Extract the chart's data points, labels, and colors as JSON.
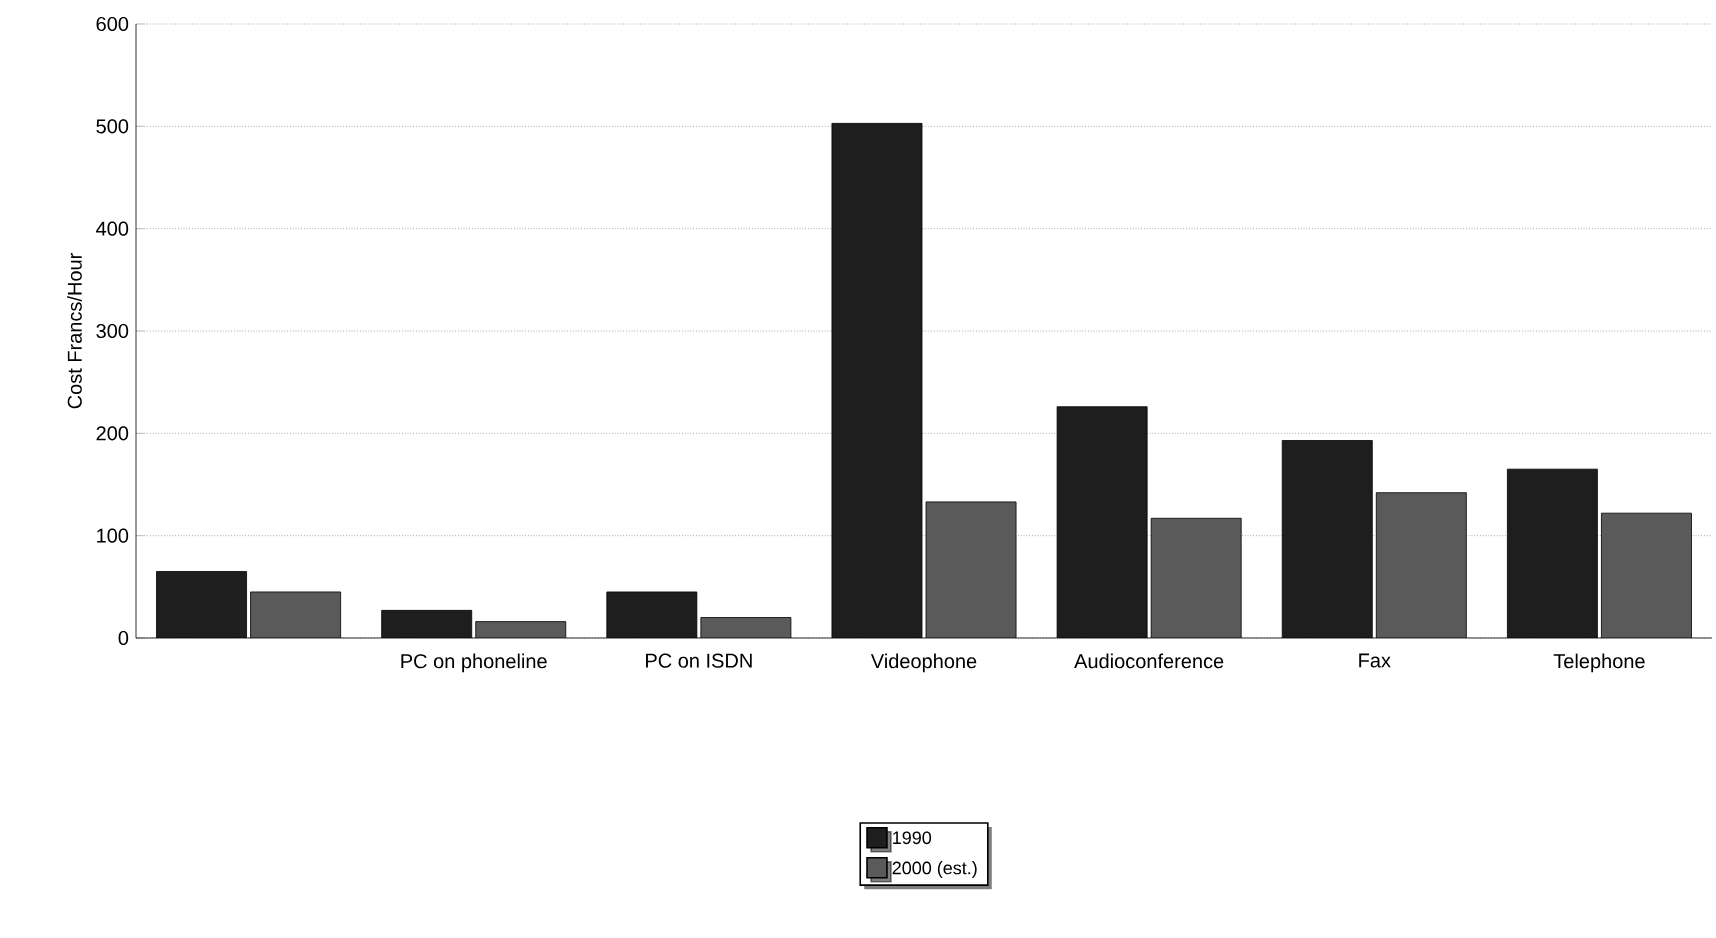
{
  "chart_data": {
    "type": "bar",
    "ylabel": "Cost Francs/Hour",
    "categories": [
      null,
      "PC on phoneline",
      "PC on ISDN",
      "Videophone",
      "Audioconference",
      "Fax",
      "Telephone"
    ],
    "series": [
      {
        "name": "1990",
        "color": "#1e1e1e",
        "values": [
          65,
          27,
          45,
          503,
          226,
          193,
          165
        ]
      },
      {
        "name": "2000 (est.)",
        "color": "#5a5a5a",
        "values": [
          45,
          16,
          20,
          133,
          117,
          142,
          122
        ]
      }
    ],
    "ylim": [
      0,
      600
    ],
    "yticks": [
      0,
      100,
      200,
      300,
      400,
      500,
      600
    ],
    "grid": "y",
    "legend": "bottom"
  }
}
